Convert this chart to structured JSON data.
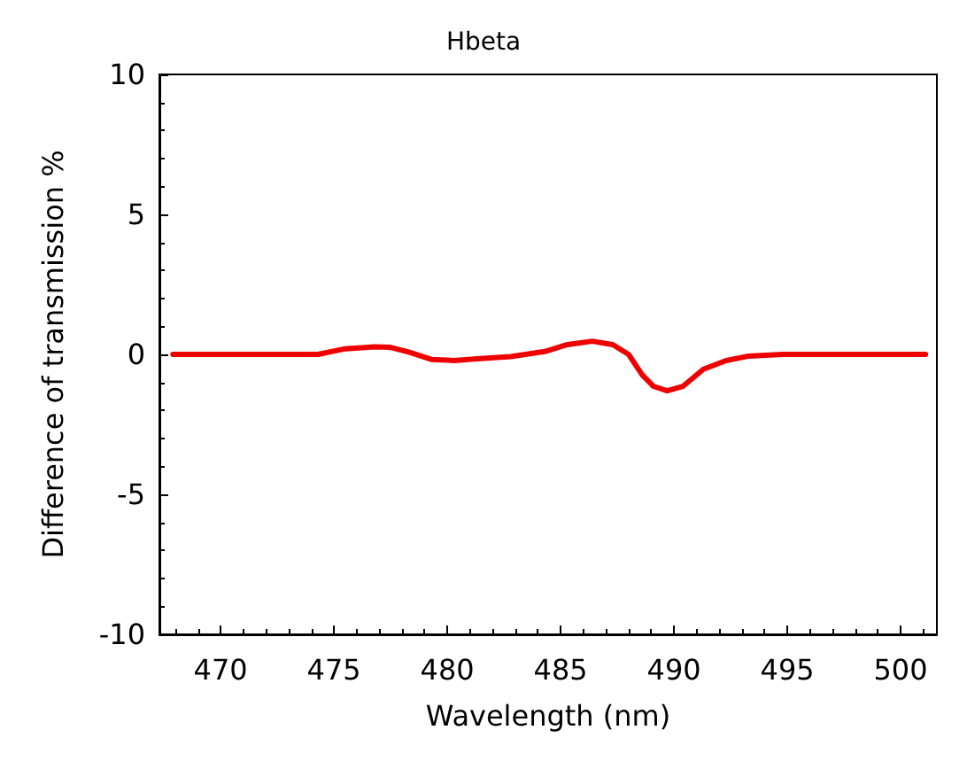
{
  "chart_data": {
    "type": "line",
    "title": "Hbeta",
    "xlabel": "Wavelength (nm)",
    "ylabel": "Difference of transmission %",
    "xlim": [
      467.3,
      501.6
    ],
    "xticks": [
      470,
      475,
      480,
      485,
      490,
      495,
      500
    ],
    "ylim": [
      -10,
      10
    ],
    "yticks": [
      -10,
      -5,
      0,
      5,
      10
    ],
    "grid": false,
    "marker": "none",
    "line_style": "solid",
    "x": [
      467.9,
      474.3,
      475.5,
      476.8,
      477.5,
      478.3,
      479.3,
      480.3,
      481.3,
      482.8,
      484.3,
      485.3,
      486.4,
      487.3,
      488.0,
      488.6,
      489.1,
      489.7,
      490.4,
      491.3,
      492.3,
      493.3,
      494.8,
      501.1
    ],
    "series": [
      {
        "color": "#ee0000",
        "values": [
          0,
          0,
          0.2,
          0.27,
          0.25,
          0.08,
          -0.18,
          -0.22,
          -0.16,
          -0.08,
          0.1,
          0.35,
          0.47,
          0.35,
          0,
          -0.73,
          -1.14,
          -1.3,
          -1.14,
          -0.53,
          -0.22,
          -0.06,
          0,
          0
        ]
      }
    ]
  }
}
